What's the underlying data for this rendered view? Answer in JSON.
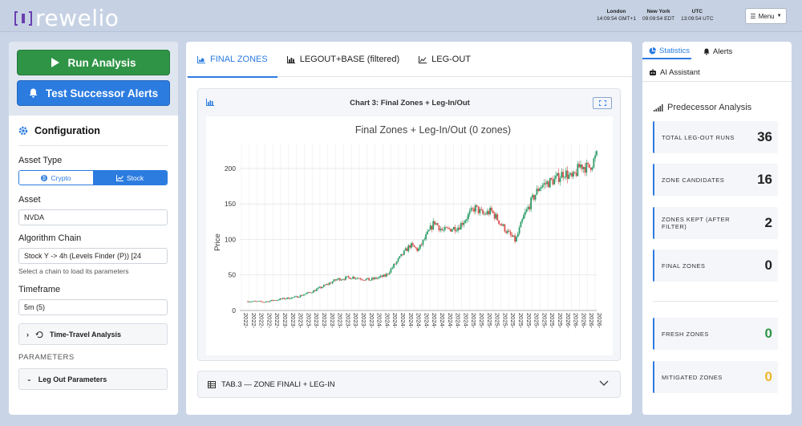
{
  "header": {
    "logo_text": "rewelio",
    "clocks": [
      {
        "city": "London",
        "time": "14:09:54 GMT+1"
      },
      {
        "city": "New York",
        "time": "09:09:54 EDT"
      },
      {
        "city": "UTC",
        "time": "13:09:54 UTC"
      }
    ],
    "menu_label": "Menu"
  },
  "sidebar": {
    "run_label": "Run Analysis",
    "test_label": "Test Successor Alerts",
    "config_title": "Configuration",
    "asset_type_label": "Asset Type",
    "asset_type_options": [
      "Crypto",
      "Stock"
    ],
    "asset_type_selected": "Stock",
    "asset_label": "Asset",
    "asset_value": "NVDA",
    "algo_label": "Algorithm Chain",
    "algo_value": "Stock Y -> 4h (Levels Finder (P)) [24",
    "algo_hint": "Select a chain to load its parameters",
    "timeframe_label": "Timeframe",
    "timeframe_value": "5m (5)",
    "time_travel_label": "Time-Travel Analysis",
    "parameters_label": "PARAMETERS",
    "leg_out_label": "Leg Out Parameters"
  },
  "main": {
    "tabs": [
      {
        "label": "FINAL ZONES",
        "active": true
      },
      {
        "label": "LEGOUT+BASE (filtered)",
        "active": false
      },
      {
        "label": "LEG-OUT",
        "active": false
      }
    ],
    "chart_card_title": "Chart 3: Final Zones + Leg-In/Out",
    "table_section_label": "TAB.3 — ZONE FINALI + LEG-IN"
  },
  "right": {
    "tabs": [
      {
        "label": "Statistics",
        "active": true
      },
      {
        "label": "Alerts",
        "active": false
      },
      {
        "label": "AI Assistant",
        "active": false
      }
    ],
    "section_title": "Predecessor Analysis",
    "stats": [
      {
        "label": "TOTAL LEG-OUT RUNS",
        "value": "36",
        "color": "#222222"
      },
      {
        "label": "ZONE CANDIDATES",
        "value": "16",
        "color": "#222222"
      },
      {
        "label": "ZONES KEPT (AFTER FILTER)",
        "value": "2",
        "color": "#222222"
      },
      {
        "label": "FINAL ZONES",
        "value": "0",
        "color": "#222222"
      },
      {
        "label": "FRESH ZONES",
        "value": "0",
        "color": "#2f9446"
      },
      {
        "label": "MITIGATED ZONES",
        "value": "0",
        "color": "#f0b429"
      }
    ]
  },
  "chart_data": {
    "type": "candlestick",
    "title": "Final Zones + Leg-In/Out (0 zones)",
    "ylabel": "Price",
    "ylim": [
      0,
      235
    ],
    "yticks": [
      0,
      50,
      100,
      150,
      200
    ],
    "xlim": [
      "2022-06",
      "2026-02"
    ],
    "xtick_labels": [
      "2022-",
      "2022-",
      "2022-",
      "2022-",
      "2022-",
      "2023-",
      "2023-",
      "2023-",
      "2023-",
      "2023-",
      "2023-",
      "2023-",
      "2023-",
      "2023-",
      "2023-",
      "2023-",
      "2023-",
      "2024-",
      "2024-",
      "2024-",
      "2024-",
      "2024-",
      "2024-",
      "2024-",
      "2024-",
      "2024-",
      "2024-",
      "2024-",
      "2024-",
      "2025-",
      "2025-",
      "2025-",
      "2025-",
      "2025-",
      "2025-",
      "2025-",
      "2025-",
      "2025-",
      "2025-",
      "2025-",
      "2025-",
      "2026-",
      "2026-",
      "2026-",
      "2026-",
      "2026-"
    ],
    "up_color": "#2e9e6a",
    "down_color": "#d9534f",
    "price_path": [
      {
        "t": "2022-07",
        "close": 13
      },
      {
        "t": "2022-09",
        "close": 12
      },
      {
        "t": "2022-11",
        "close": 16
      },
      {
        "t": "2023-01",
        "close": 19
      },
      {
        "t": "2023-03",
        "close": 27
      },
      {
        "t": "2023-05",
        "close": 38
      },
      {
        "t": "2023-06",
        "close": 44
      },
      {
        "t": "2023-08",
        "close": 47
      },
      {
        "t": "2023-10",
        "close": 43
      },
      {
        "t": "2023-12",
        "close": 49
      },
      {
        "t": "2024-02",
        "close": 78
      },
      {
        "t": "2024-03",
        "close": 92
      },
      {
        "t": "2024-04",
        "close": 85
      },
      {
        "t": "2024-06",
        "close": 125
      },
      {
        "t": "2024-07",
        "close": 112
      },
      {
        "t": "2024-09",
        "close": 118
      },
      {
        "t": "2024-11",
        "close": 145
      },
      {
        "t": "2024-12",
        "close": 135
      },
      {
        "t": "2025-01",
        "close": 140
      },
      {
        "t": "2025-02",
        "close": 125
      },
      {
        "t": "2025-03",
        "close": 110
      },
      {
        "t": "2025-04",
        "close": 98
      },
      {
        "t": "2025-05",
        "close": 132
      },
      {
        "t": "2025-06",
        "close": 155
      },
      {
        "t": "2025-07",
        "close": 175
      },
      {
        "t": "2025-08",
        "close": 180
      },
      {
        "t": "2025-09",
        "close": 185
      },
      {
        "t": "2025-10",
        "close": 195
      },
      {
        "t": "2025-11",
        "close": 185
      },
      {
        "t": "2025-12",
        "close": 205
      },
      {
        "t": "2026-01",
        "close": 200
      },
      {
        "t": "2026-02",
        "close": 218
      }
    ]
  }
}
